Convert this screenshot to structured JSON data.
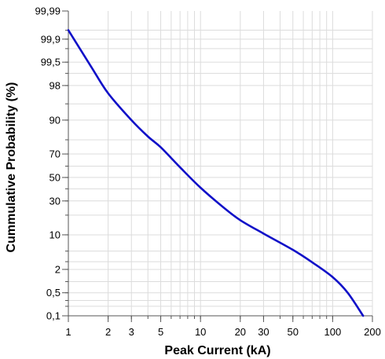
{
  "chart_data": {
    "type": "line",
    "title": "",
    "xlabel": "Peak Current (kA)",
    "ylabel": "Cummulative Probability (%)",
    "x_scale": "log",
    "y_scale": "probability",
    "xlim": [
      1,
      200
    ],
    "ylim": [
      0.1,
      99.99
    ],
    "grid": true,
    "x_ticks": [
      {
        "value": 1,
        "label": "1"
      },
      {
        "value": 2,
        "label": "2"
      },
      {
        "value": 3,
        "label": "3"
      },
      {
        "value": 5,
        "label": "5"
      },
      {
        "value": 10,
        "label": "10"
      },
      {
        "value": 20,
        "label": "20"
      },
      {
        "value": 30,
        "label": "30"
      },
      {
        "value": 50,
        "label": "50"
      },
      {
        "value": 100,
        "label": "100"
      },
      {
        "value": 200,
        "label": "200"
      }
    ],
    "y_ticks": [
      {
        "value": 0.1,
        "label": "0,1"
      },
      {
        "value": 0.5,
        "label": "0,5"
      },
      {
        "value": 2,
        "label": "2"
      },
      {
        "value": 10,
        "label": "10"
      },
      {
        "value": 30,
        "label": "30"
      },
      {
        "value": 50,
        "label": "50"
      },
      {
        "value": 70,
        "label": "70"
      },
      {
        "value": 90,
        "label": "90"
      },
      {
        "value": 98,
        "label": "98"
      },
      {
        "value": 99.5,
        "label": "99,5"
      },
      {
        "value": 99.9,
        "label": "99,9"
      },
      {
        "value": 99.99,
        "label": "99,99"
      }
    ],
    "series": [
      {
        "color": "#1010c8",
        "points": [
          {
            "x": 1,
            "y": 99.95
          },
          {
            "x": 1.5,
            "y": 99.3
          },
          {
            "x": 2,
            "y": 97
          },
          {
            "x": 3,
            "y": 90
          },
          {
            "x": 4,
            "y": 82
          },
          {
            "x": 5,
            "y": 75
          },
          {
            "x": 7,
            "y": 59
          },
          {
            "x": 10,
            "y": 41
          },
          {
            "x": 15,
            "y": 25
          },
          {
            "x": 20,
            "y": 17
          },
          {
            "x": 30,
            "y": 10.5
          },
          {
            "x": 50,
            "y": 5.3
          },
          {
            "x": 70,
            "y": 2.9
          },
          {
            "x": 100,
            "y": 1.3
          },
          {
            "x": 130,
            "y": 0.5
          },
          {
            "x": 170,
            "y": 0.1
          }
        ]
      }
    ]
  }
}
